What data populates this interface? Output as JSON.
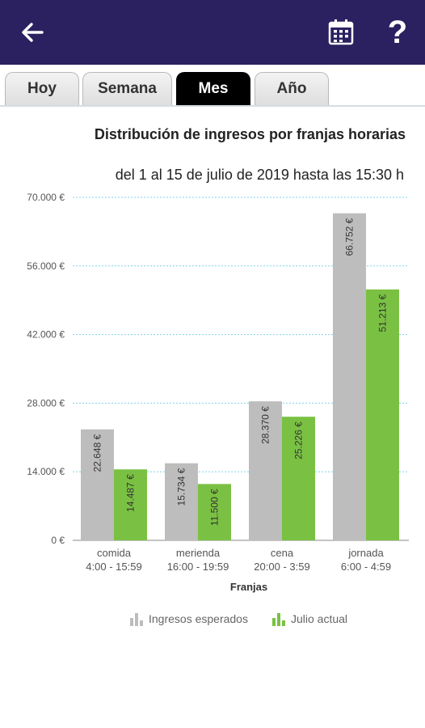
{
  "header": {
    "back_icon": "arrow-left-icon",
    "calendar_icon": "calendar-icon",
    "help_label": "?"
  },
  "tabs": [
    {
      "label": "Hoy",
      "active": false
    },
    {
      "label": "Semana",
      "active": false
    },
    {
      "label": "Mes",
      "active": true
    },
    {
      "label": "Año",
      "active": false
    }
  ],
  "colors": {
    "appbar": "#2b2160",
    "expected": "#bdbdbd",
    "actual": "#7ac143",
    "grid": "#7fd3ea"
  },
  "chart_data": {
    "type": "bar",
    "title": "Distribución de ingresos por franjas horarias",
    "subtitle": "del 1 al 15 de julio de 2019 hasta las 15:30 h",
    "xlabel": "Franjas",
    "ylabel": "",
    "ylim": [
      0,
      70000
    ],
    "yticks": [
      "0 €",
      "14.000 €",
      "28.000 €",
      "42.000 €",
      "56.000 €",
      "70.000 €"
    ],
    "ytick_values": [
      0,
      14000,
      28000,
      42000,
      56000,
      70000
    ],
    "grid": true,
    "legend_position": "bottom",
    "categories": [
      [
        "comida",
        "4:00 - 15:59"
      ],
      [
        "merienda",
        "16:00 - 19:59"
      ],
      [
        "cena",
        "20:00 - 3:59"
      ],
      [
        "jornada",
        "6:00 - 4:59"
      ]
    ],
    "series": [
      {
        "name": "Ingresos esperados",
        "color": "#bdbdbd",
        "values": [
          22648,
          15734,
          28370,
          66752
        ],
        "labels": [
          "22.648 €",
          "15.734 €",
          "28.370 €",
          "66.752 €"
        ]
      },
      {
        "name": "Julio actual",
        "color": "#7ac143",
        "values": [
          14487,
          11500,
          25226,
          51213
        ],
        "labels": [
          "14.487 €",
          "11.500 €",
          "25.226 €",
          "51.213 €"
        ]
      }
    ]
  }
}
